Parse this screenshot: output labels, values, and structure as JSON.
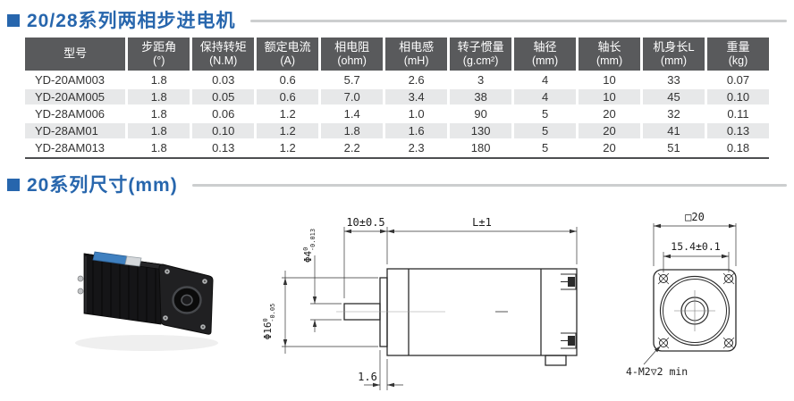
{
  "colors": {
    "blue": "#2766ad",
    "rule": "#cccecf",
    "thbg": "#595a5c",
    "rowalt": "#e7e8e9"
  },
  "sections": {
    "spec_title": "20/28系列两相步进电机",
    "dim_title": "20系列尺寸(mm)"
  },
  "table": {
    "columns": [
      {
        "label": "型号",
        "unit": ""
      },
      {
        "label": "步距角",
        "unit": "(°)"
      },
      {
        "label": "保持转矩",
        "unit": "(N.M)"
      },
      {
        "label": "额定电流",
        "unit": "(A)"
      },
      {
        "label": "相电阻",
        "unit": "(ohm)"
      },
      {
        "label": "相电感",
        "unit": "(mH)"
      },
      {
        "label": "转子惯量",
        "unit": "(g.cm²)"
      },
      {
        "label": "轴径",
        "unit": "(mm)"
      },
      {
        "label": "轴长",
        "unit": "(mm)"
      },
      {
        "label": "机身长L",
        "unit": "(mm)"
      },
      {
        "label": "重量",
        "unit": "(kg)"
      }
    ],
    "rows": [
      [
        "YD-20AM003",
        "1.8",
        "0.03",
        "0.6",
        "5.7",
        "2.6",
        "3",
        "4",
        "10",
        "33",
        "0.07"
      ],
      [
        "YD-20AM005",
        "1.8",
        "0.05",
        "0.6",
        "7.0",
        "3.4",
        "38",
        "4",
        "10",
        "45",
        "0.10"
      ],
      [
        "YD-28AM006",
        "1.8",
        "0.06",
        "1.2",
        "1.4",
        "1.0",
        "90",
        "5",
        "20",
        "32",
        "0.11"
      ],
      [
        "YD-28AM01",
        "1.8",
        "0.10",
        "1.2",
        "1.8",
        "1.6",
        "130",
        "5",
        "20",
        "41",
        "0.13"
      ],
      [
        "YD-28AM013",
        "1.8",
        "0.13",
        "1.2",
        "2.2",
        "2.3",
        "180",
        "5",
        "20",
        "51",
        "0.18"
      ]
    ]
  },
  "drawing": {
    "side_view": {
      "shaft_length_dim": "10±0.5",
      "body_length_dim": "L±1",
      "shaft_dia": {
        "base": "Φ4",
        "upper": "0",
        "lower": "-0.013"
      },
      "pilot_dia": {
        "base": "Φ16",
        "upper": "0",
        "lower": "-0.05"
      },
      "pilot_height_dim": "1.6"
    },
    "front_view": {
      "flange_size_dim": "□20",
      "hole_pitch_dim": "15.4±0.1",
      "mounting_note": "4-M2▽2 min"
    }
  }
}
